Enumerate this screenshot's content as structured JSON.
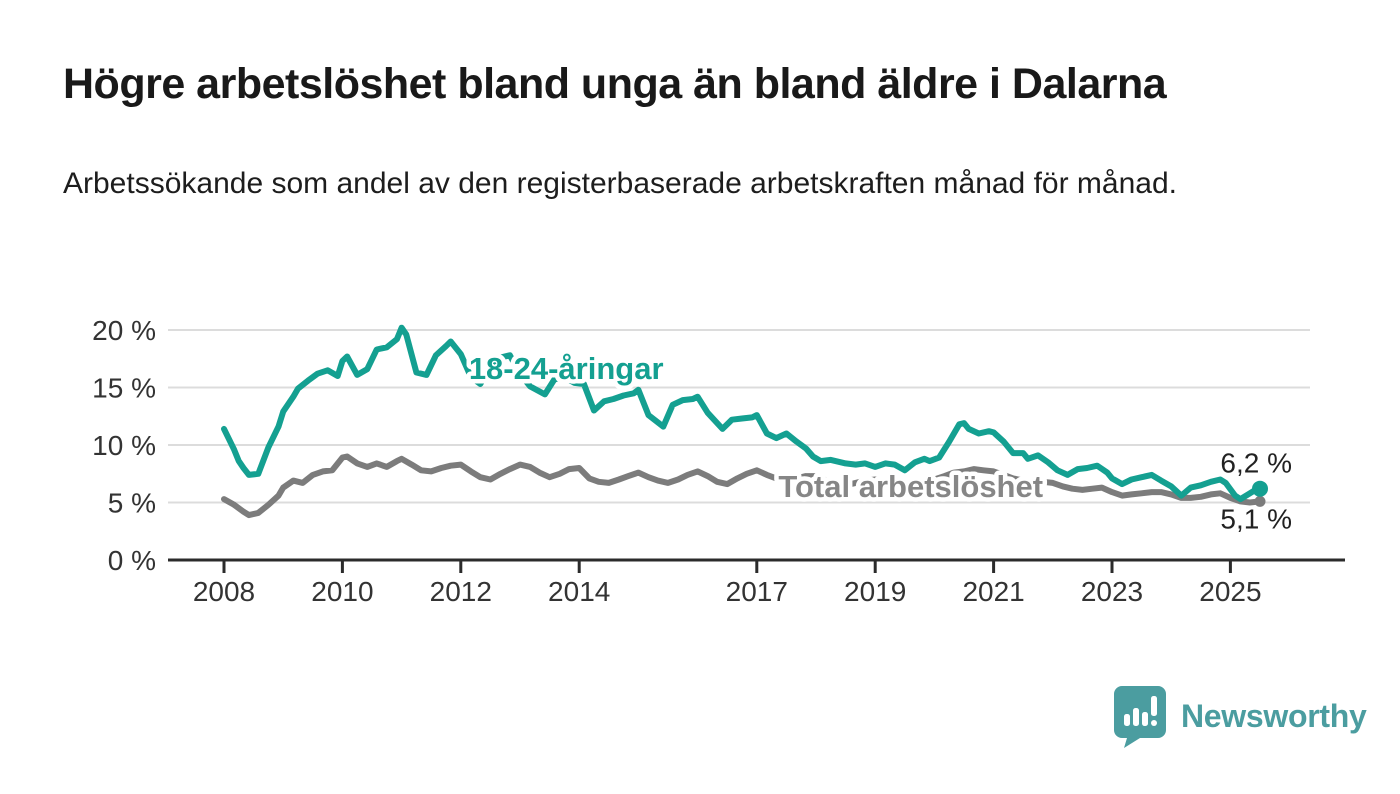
{
  "header": {
    "title": "Högre arbetslöshet bland unga än bland äldre i Dalarna",
    "subtitle": "Arbetssökande som andel av den registerbaserade arbetskraften månad för månad."
  },
  "chart_data": {
    "type": "line",
    "title": "Högre arbetslöshet bland unga än bland äldre i Dalarna",
    "xlabel": "",
    "ylabel": "",
    "grid": "horizontal-gridlines",
    "legend_position": "inline-labels-on-lines",
    "x_axis": {
      "ticks": [
        2008,
        2010,
        2012,
        2014,
        2017,
        2019,
        2021,
        2023,
        2025
      ],
      "range": [
        2007.1,
        2026.3
      ]
    },
    "y_axis": {
      "unit": "%",
      "range": [
        0,
        21
      ],
      "ticks": [
        {
          "value": 0,
          "label": "0 %"
        },
        {
          "value": 5,
          "label": "5 %"
        },
        {
          "value": 10,
          "label": "10 %"
        },
        {
          "value": 15,
          "label": "15 %"
        },
        {
          "value": 20,
          "label": "20 %"
        }
      ]
    },
    "series": [
      {
        "name": "18-24-åringar",
        "color": "#14a091",
        "label_color": "#14a091",
        "label_anchor": {
          "year": 2013.78,
          "value": 16.7
        },
        "end_label": "6,2 %",
        "end_label_position": "above",
        "end_value": 6.2,
        "end_dot": true,
        "points": [
          [
            2008.0,
            11.4
          ],
          [
            2008.17,
            9.6
          ],
          [
            2008.25,
            8.6
          ],
          [
            2008.33,
            8.0
          ],
          [
            2008.42,
            7.4
          ],
          [
            2008.58,
            7.5
          ],
          [
            2008.75,
            9.8
          ],
          [
            2008.92,
            11.6
          ],
          [
            2009.0,
            12.9
          ],
          [
            2009.17,
            14.2
          ],
          [
            2009.25,
            14.9
          ],
          [
            2009.42,
            15.6
          ],
          [
            2009.58,
            16.2
          ],
          [
            2009.75,
            16.5
          ],
          [
            2009.92,
            16.0
          ],
          [
            2010.0,
            17.3
          ],
          [
            2010.08,
            17.7
          ],
          [
            2010.25,
            16.1
          ],
          [
            2010.42,
            16.6
          ],
          [
            2010.58,
            18.3
          ],
          [
            2010.75,
            18.5
          ],
          [
            2010.92,
            19.2
          ],
          [
            2011.0,
            20.2
          ],
          [
            2011.08,
            19.6
          ],
          [
            2011.25,
            16.3
          ],
          [
            2011.42,
            16.1
          ],
          [
            2011.58,
            17.8
          ],
          [
            2011.75,
            18.6
          ],
          [
            2011.83,
            19.0
          ],
          [
            2012.0,
            17.9
          ],
          [
            2012.17,
            15.9
          ],
          [
            2012.33,
            15.3
          ],
          [
            2012.5,
            16.8
          ],
          [
            2012.67,
            17.6
          ],
          [
            2012.83,
            17.8
          ],
          [
            2013.0,
            16.2
          ],
          [
            2013.17,
            15.1
          ],
          [
            2013.42,
            14.4
          ],
          [
            2013.58,
            15.7
          ],
          [
            2013.75,
            15.9
          ],
          [
            2013.92,
            15.4
          ],
          [
            2014.08,
            15.3
          ],
          [
            2014.25,
            13.0
          ],
          [
            2014.42,
            13.8
          ],
          [
            2014.58,
            14.0
          ],
          [
            2014.75,
            14.3
          ],
          [
            2014.92,
            14.5
          ],
          [
            2015.0,
            14.8
          ],
          [
            2015.17,
            12.6
          ],
          [
            2015.42,
            11.6
          ],
          [
            2015.58,
            13.5
          ],
          [
            2015.75,
            13.9
          ],
          [
            2015.92,
            14.0
          ],
          [
            2016.0,
            14.2
          ],
          [
            2016.17,
            12.8
          ],
          [
            2016.42,
            11.4
          ],
          [
            2016.58,
            12.2
          ],
          [
            2016.75,
            12.3
          ],
          [
            2016.92,
            12.4
          ],
          [
            2017.0,
            12.6
          ],
          [
            2017.17,
            11.0
          ],
          [
            2017.33,
            10.6
          ],
          [
            2017.5,
            11.0
          ],
          [
            2017.67,
            10.3
          ],
          [
            2017.83,
            9.7
          ],
          [
            2017.95,
            9.0
          ],
          [
            2018.08,
            8.6
          ],
          [
            2018.25,
            8.7
          ],
          [
            2018.5,
            8.4
          ],
          [
            2018.67,
            8.3
          ],
          [
            2018.83,
            8.4
          ],
          [
            2019.0,
            8.1
          ],
          [
            2019.17,
            8.4
          ],
          [
            2019.33,
            8.3
          ],
          [
            2019.5,
            7.8
          ],
          [
            2019.67,
            8.5
          ],
          [
            2019.83,
            8.8
          ],
          [
            2019.92,
            8.6
          ],
          [
            2020.08,
            8.9
          ],
          [
            2020.25,
            10.3
          ],
          [
            2020.42,
            11.8
          ],
          [
            2020.5,
            11.9
          ],
          [
            2020.58,
            11.4
          ],
          [
            2020.75,
            11.0
          ],
          [
            2020.92,
            11.2
          ],
          [
            2021.0,
            11.1
          ],
          [
            2021.17,
            10.3
          ],
          [
            2021.33,
            9.3
          ],
          [
            2021.5,
            9.3
          ],
          [
            2021.58,
            8.8
          ],
          [
            2021.75,
            9.1
          ],
          [
            2021.92,
            8.5
          ],
          [
            2022.08,
            7.8
          ],
          [
            2022.25,
            7.4
          ],
          [
            2022.42,
            7.9
          ],
          [
            2022.58,
            8.0
          ],
          [
            2022.75,
            8.2
          ],
          [
            2022.92,
            7.6
          ],
          [
            2023.0,
            7.1
          ],
          [
            2023.17,
            6.6
          ],
          [
            2023.33,
            7.0
          ],
          [
            2023.5,
            7.2
          ],
          [
            2023.67,
            7.4
          ],
          [
            2023.83,
            6.9
          ],
          [
            2024.0,
            6.4
          ],
          [
            2024.17,
            5.6
          ],
          [
            2024.33,
            6.3
          ],
          [
            2024.5,
            6.5
          ],
          [
            2024.67,
            6.8
          ],
          [
            2024.83,
            7.0
          ],
          [
            2024.92,
            6.7
          ],
          [
            2025.08,
            5.6
          ],
          [
            2025.17,
            5.3
          ],
          [
            2025.33,
            5.8
          ],
          [
            2025.42,
            6.1
          ],
          [
            2025.5,
            6.2
          ]
        ]
      },
      {
        "name": "Total arbetslöshet",
        "color": "#7c7c7c",
        "label_color": "#868686",
        "label_anchor": {
          "year": 2019.6,
          "value": 6.45
        },
        "end_label": "5,1 %",
        "end_label_position": "below",
        "end_value": 5.1,
        "end_dot": true,
        "points": [
          [
            2008.0,
            5.3
          ],
          [
            2008.17,
            4.8
          ],
          [
            2008.33,
            4.2
          ],
          [
            2008.42,
            3.9
          ],
          [
            2008.58,
            4.1
          ],
          [
            2008.75,
            4.8
          ],
          [
            2008.92,
            5.6
          ],
          [
            2009.0,
            6.3
          ],
          [
            2009.17,
            6.9
          ],
          [
            2009.33,
            6.7
          ],
          [
            2009.5,
            7.4
          ],
          [
            2009.67,
            7.7
          ],
          [
            2009.83,
            7.8
          ],
          [
            2010.0,
            8.9
          ],
          [
            2010.08,
            9.0
          ],
          [
            2010.25,
            8.4
          ],
          [
            2010.42,
            8.1
          ],
          [
            2010.58,
            8.4
          ],
          [
            2010.75,
            8.1
          ],
          [
            2010.92,
            8.6
          ],
          [
            2011.0,
            8.8
          ],
          [
            2011.17,
            8.3
          ],
          [
            2011.33,
            7.8
          ],
          [
            2011.5,
            7.7
          ],
          [
            2011.67,
            8.0
          ],
          [
            2011.83,
            8.2
          ],
          [
            2012.0,
            8.3
          ],
          [
            2012.17,
            7.7
          ],
          [
            2012.33,
            7.2
          ],
          [
            2012.5,
            7.0
          ],
          [
            2012.67,
            7.5
          ],
          [
            2012.83,
            7.9
          ],
          [
            2013.0,
            8.3
          ],
          [
            2013.17,
            8.1
          ],
          [
            2013.33,
            7.6
          ],
          [
            2013.5,
            7.2
          ],
          [
            2013.67,
            7.5
          ],
          [
            2013.83,
            7.9
          ],
          [
            2014.0,
            8.0
          ],
          [
            2014.17,
            7.1
          ],
          [
            2014.33,
            6.8
          ],
          [
            2014.5,
            6.7
          ],
          [
            2014.67,
            7.0
          ],
          [
            2014.83,
            7.3
          ],
          [
            2015.0,
            7.6
          ],
          [
            2015.17,
            7.2
          ],
          [
            2015.33,
            6.9
          ],
          [
            2015.5,
            6.7
          ],
          [
            2015.67,
            7.0
          ],
          [
            2015.83,
            7.4
          ],
          [
            2016.0,
            7.7
          ],
          [
            2016.17,
            7.3
          ],
          [
            2016.33,
            6.8
          ],
          [
            2016.5,
            6.6
          ],
          [
            2016.67,
            7.1
          ],
          [
            2016.83,
            7.5
          ],
          [
            2017.0,
            7.8
          ],
          [
            2017.17,
            7.4
          ],
          [
            2017.33,
            7.1
          ],
          [
            2017.5,
            6.9
          ],
          [
            2017.67,
            7.1
          ],
          [
            2017.83,
            7.3
          ],
          [
            2018.0,
            7.3
          ],
          [
            2018.17,
            6.9
          ],
          [
            2018.33,
            6.6
          ],
          [
            2018.5,
            6.5
          ],
          [
            2018.67,
            6.7
          ],
          [
            2018.83,
            6.9
          ],
          [
            2019.0,
            7.0
          ],
          [
            2019.17,
            6.8
          ],
          [
            2019.33,
            6.6
          ],
          [
            2019.5,
            6.5
          ],
          [
            2019.67,
            6.7
          ],
          [
            2019.83,
            6.9
          ],
          [
            2020.0,
            7.0
          ],
          [
            2020.17,
            7.3
          ],
          [
            2020.33,
            7.6
          ],
          [
            2020.5,
            7.7
          ],
          [
            2020.67,
            7.9
          ],
          [
            2020.83,
            7.8
          ],
          [
            2021.0,
            7.7
          ],
          [
            2021.17,
            7.4
          ],
          [
            2021.33,
            7.1
          ],
          [
            2021.5,
            6.9
          ],
          [
            2021.67,
            6.8
          ],
          [
            2021.83,
            6.8
          ],
          [
            2022.0,
            6.7
          ],
          [
            2022.17,
            6.4
          ],
          [
            2022.33,
            6.2
          ],
          [
            2022.5,
            6.1
          ],
          [
            2022.67,
            6.2
          ],
          [
            2022.83,
            6.3
          ],
          [
            2023.0,
            5.9
          ],
          [
            2023.17,
            5.6
          ],
          [
            2023.33,
            5.7
          ],
          [
            2023.5,
            5.8
          ],
          [
            2023.67,
            5.9
          ],
          [
            2023.83,
            5.9
          ],
          [
            2024.0,
            5.7
          ],
          [
            2024.17,
            5.4
          ],
          [
            2024.33,
            5.4
          ],
          [
            2024.5,
            5.5
          ],
          [
            2024.67,
            5.7
          ],
          [
            2024.83,
            5.8
          ],
          [
            2025.0,
            5.4
          ],
          [
            2025.17,
            5.1
          ],
          [
            2025.33,
            5.0
          ],
          [
            2025.5,
            5.1
          ]
        ]
      }
    ],
    "annotations": {
      "latest_values": [
        {
          "series": "18-24-åringar",
          "label": "6,2 %"
        },
        {
          "series": "Total arbetslöshet",
          "label": "5,1 %"
        }
      ]
    },
    "colors": {
      "gridline": "#dcdcdc",
      "axis": "#2b2b2b",
      "tick_text": "#333333",
      "end_label_text": "#222222"
    }
  },
  "footer": {
    "brand": "Newsworthy",
    "brand_color": "#4b9da0",
    "logo_icon": "newsworthy-speech-bubble-bar-chart-icon"
  }
}
